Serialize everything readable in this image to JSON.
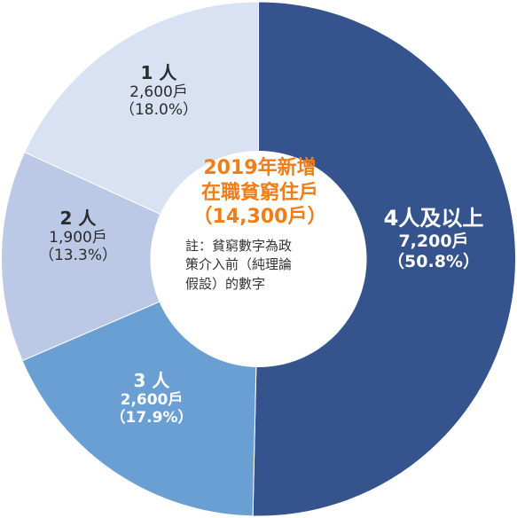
{
  "chart_data": {
    "type": "pie",
    "style": "donut",
    "title_lines": [
      "2019年新增",
      "在職貧窮住戶",
      "（14,300戶）"
    ],
    "note_lines": [
      "註：貧窮數字為政",
      "策介入前（純理論",
      "假設）的數字"
    ],
    "slices": [
      {
        "label": "4人及以上",
        "value": 7200,
        "value_label": "7,200戶",
        "pct_label": "（50.8%）",
        "color": "#35548d",
        "text_color": "#ffffff"
      },
      {
        "label": "3 人",
        "value": 2600,
        "value_label": "2,600戶",
        "pct_label": "（17.9%）",
        "color": "#6a9fd3",
        "text_color": "#ffffff"
      },
      {
        "label": "2 人",
        "value": 1900,
        "value_label": "1,900戶",
        "pct_label": "（13.3%）",
        "color": "#bcc9e6",
        "text_color": "#2b2b2b"
      },
      {
        "label": "1 人",
        "value": 2600,
        "value_label": "2,600戶",
        "pct_label": "（18.0%）",
        "color": "#d9e2f3",
        "text_color": "#2b2b2b"
      }
    ],
    "center_title_color": "#f07d16"
  }
}
